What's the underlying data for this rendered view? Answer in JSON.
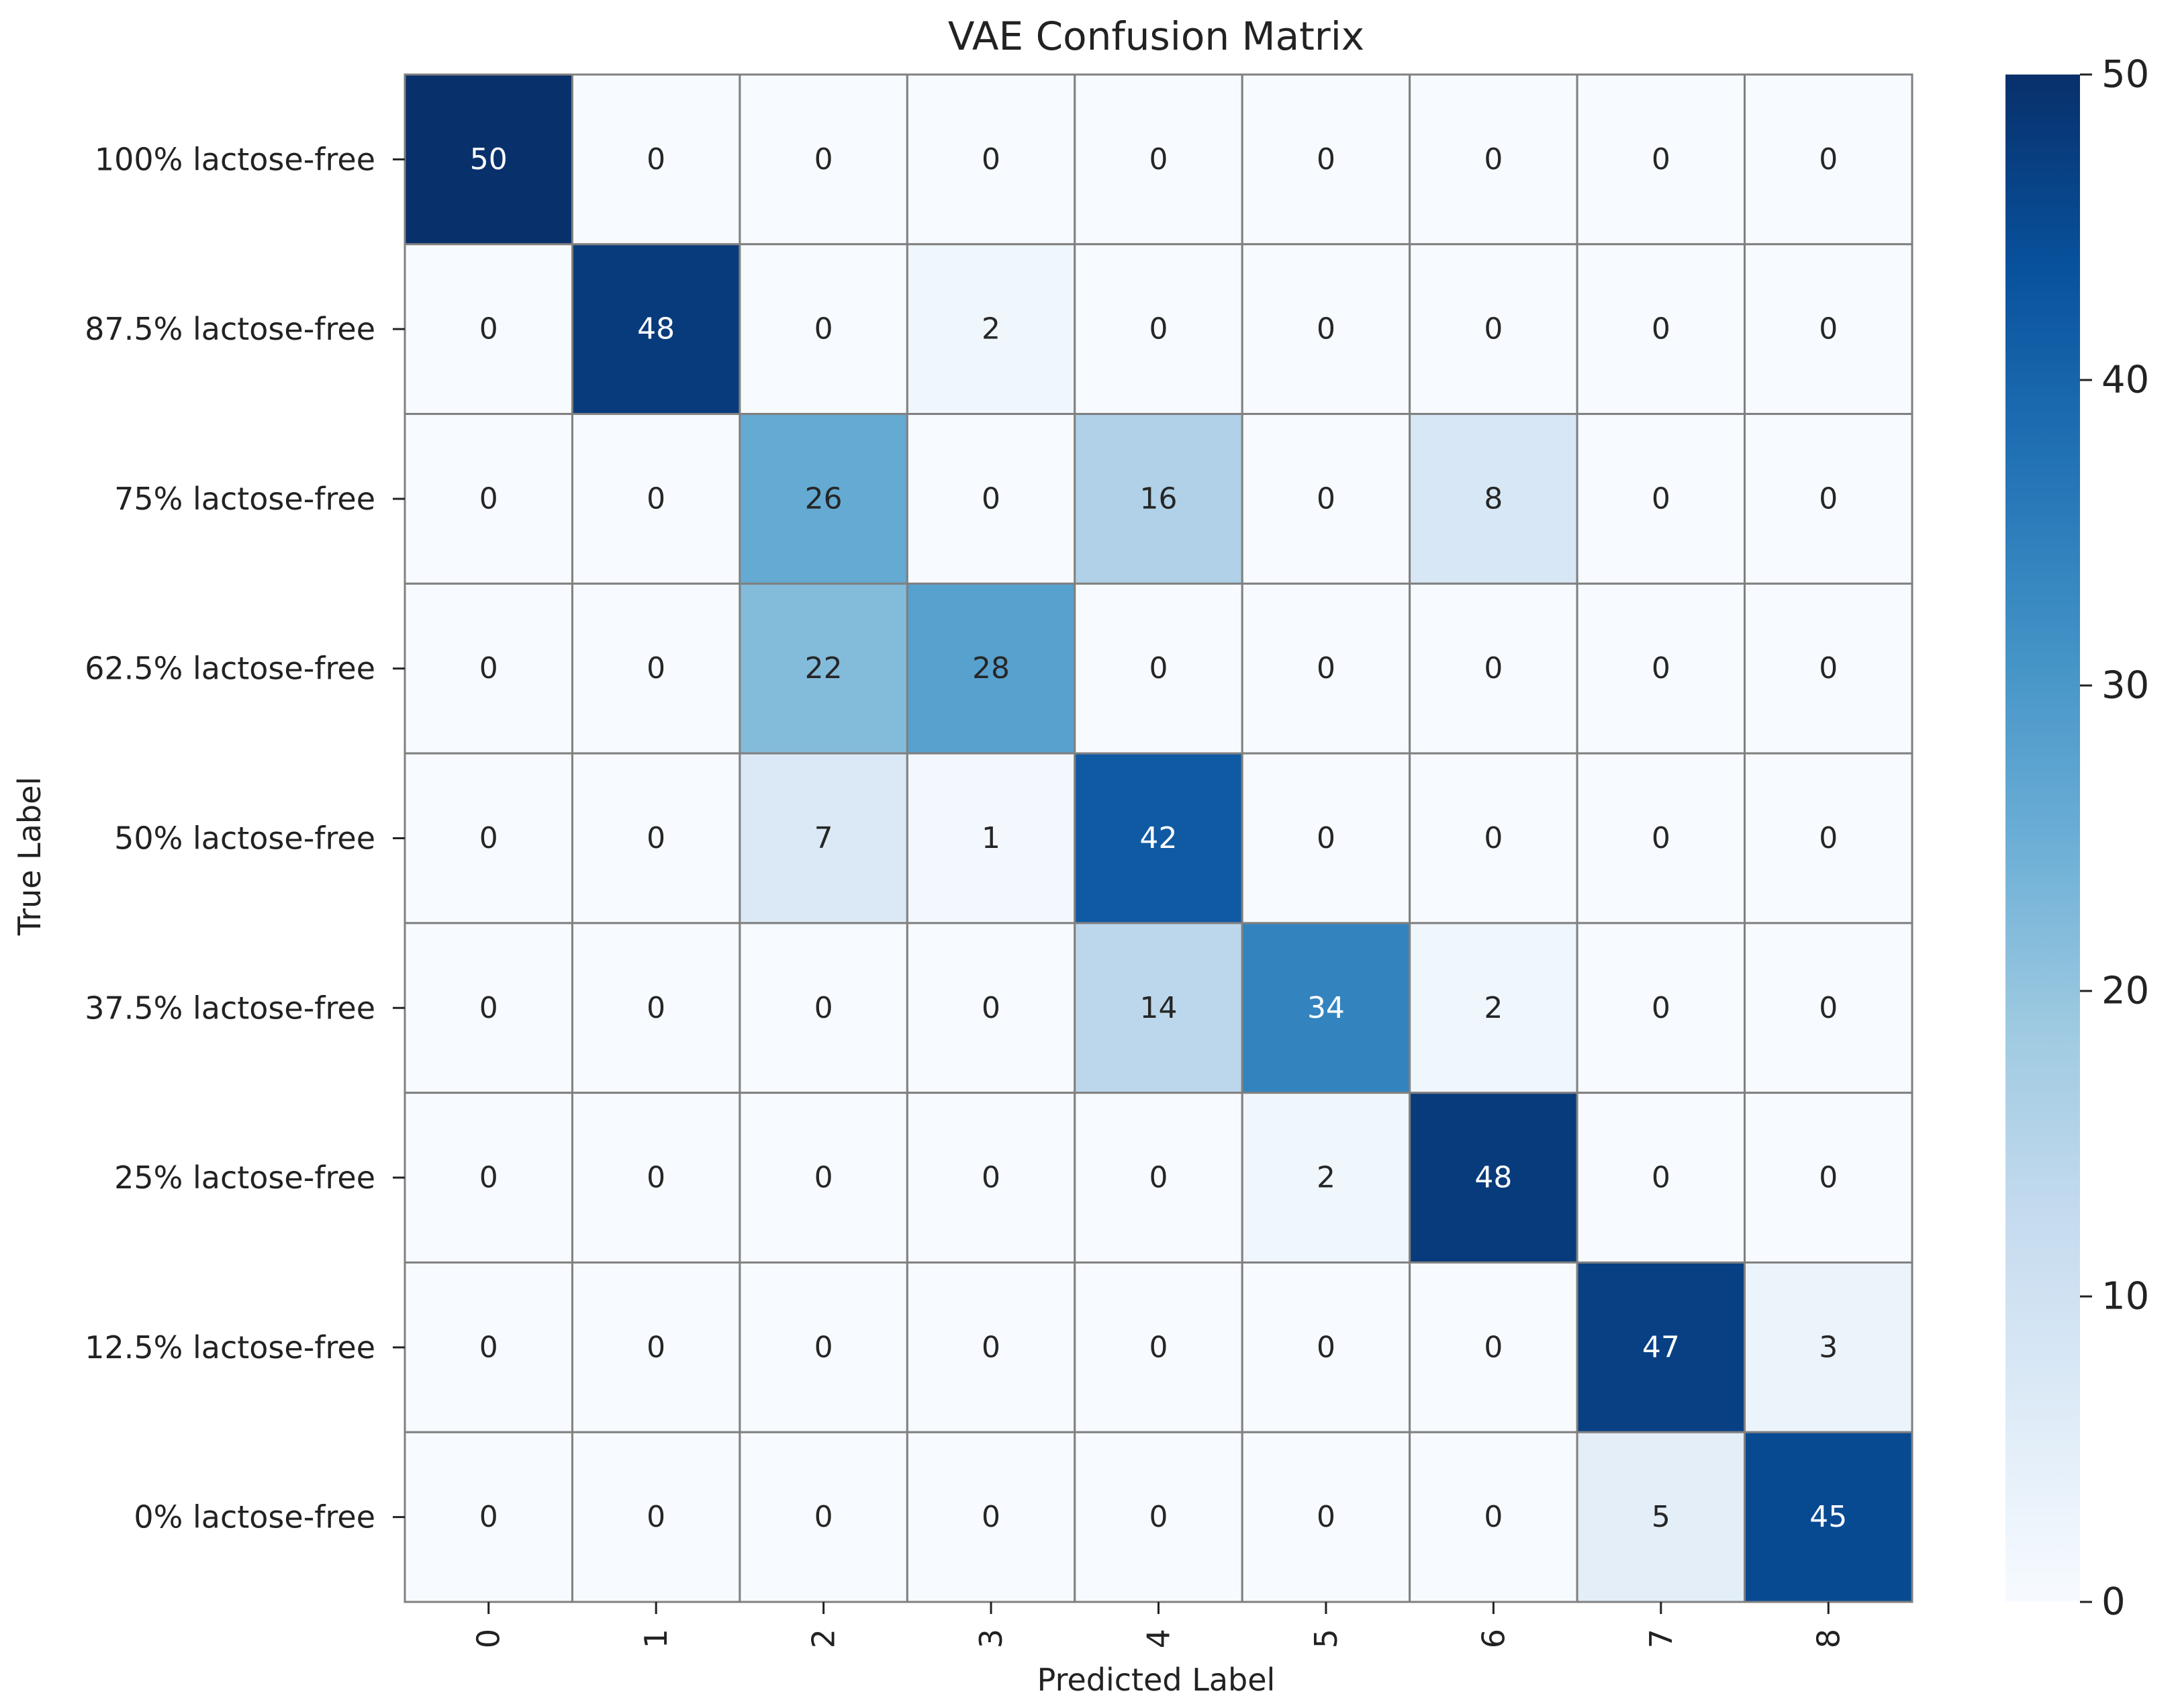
{
  "chart_data": {
    "type": "heatmap",
    "title": "VAE Confusion Matrix",
    "xlabel": "Predicted Label",
    "ylabel": "True Label",
    "x_categories": [
      "0",
      "1",
      "2",
      "3",
      "4",
      "5",
      "6",
      "7",
      "8"
    ],
    "y_categories": [
      "100% lactose-free",
      "87.5% lactose-free",
      "75% lactose-free",
      "62.5% lactose-free",
      "50% lactose-free",
      "37.5% lactose-free",
      "25% lactose-free",
      "12.5% lactose-free",
      "0% lactose-free"
    ],
    "matrix": [
      [
        50,
        0,
        0,
        0,
        0,
        0,
        0,
        0,
        0
      ],
      [
        0,
        48,
        0,
        2,
        0,
        0,
        0,
        0,
        0
      ],
      [
        0,
        0,
        26,
        0,
        16,
        0,
        8,
        0,
        0
      ],
      [
        0,
        0,
        22,
        28,
        0,
        0,
        0,
        0,
        0
      ],
      [
        0,
        0,
        7,
        1,
        42,
        0,
        0,
        0,
        0
      ],
      [
        0,
        0,
        0,
        0,
        14,
        34,
        2,
        0,
        0
      ],
      [
        0,
        0,
        0,
        0,
        0,
        2,
        48,
        0,
        0
      ],
      [
        0,
        0,
        0,
        0,
        0,
        0,
        0,
        47,
        3
      ],
      [
        0,
        0,
        0,
        0,
        0,
        0,
        0,
        5,
        45
      ]
    ],
    "colormap": "Blues",
    "colorbar": {
      "min": 0,
      "max": 50,
      "ticks": [
        0,
        10,
        20,
        30,
        40,
        50
      ]
    },
    "grid_line_color": "#808080",
    "annotation_dark_text_color": "#262626",
    "annotation_light_text_color": "#ffffff"
  }
}
